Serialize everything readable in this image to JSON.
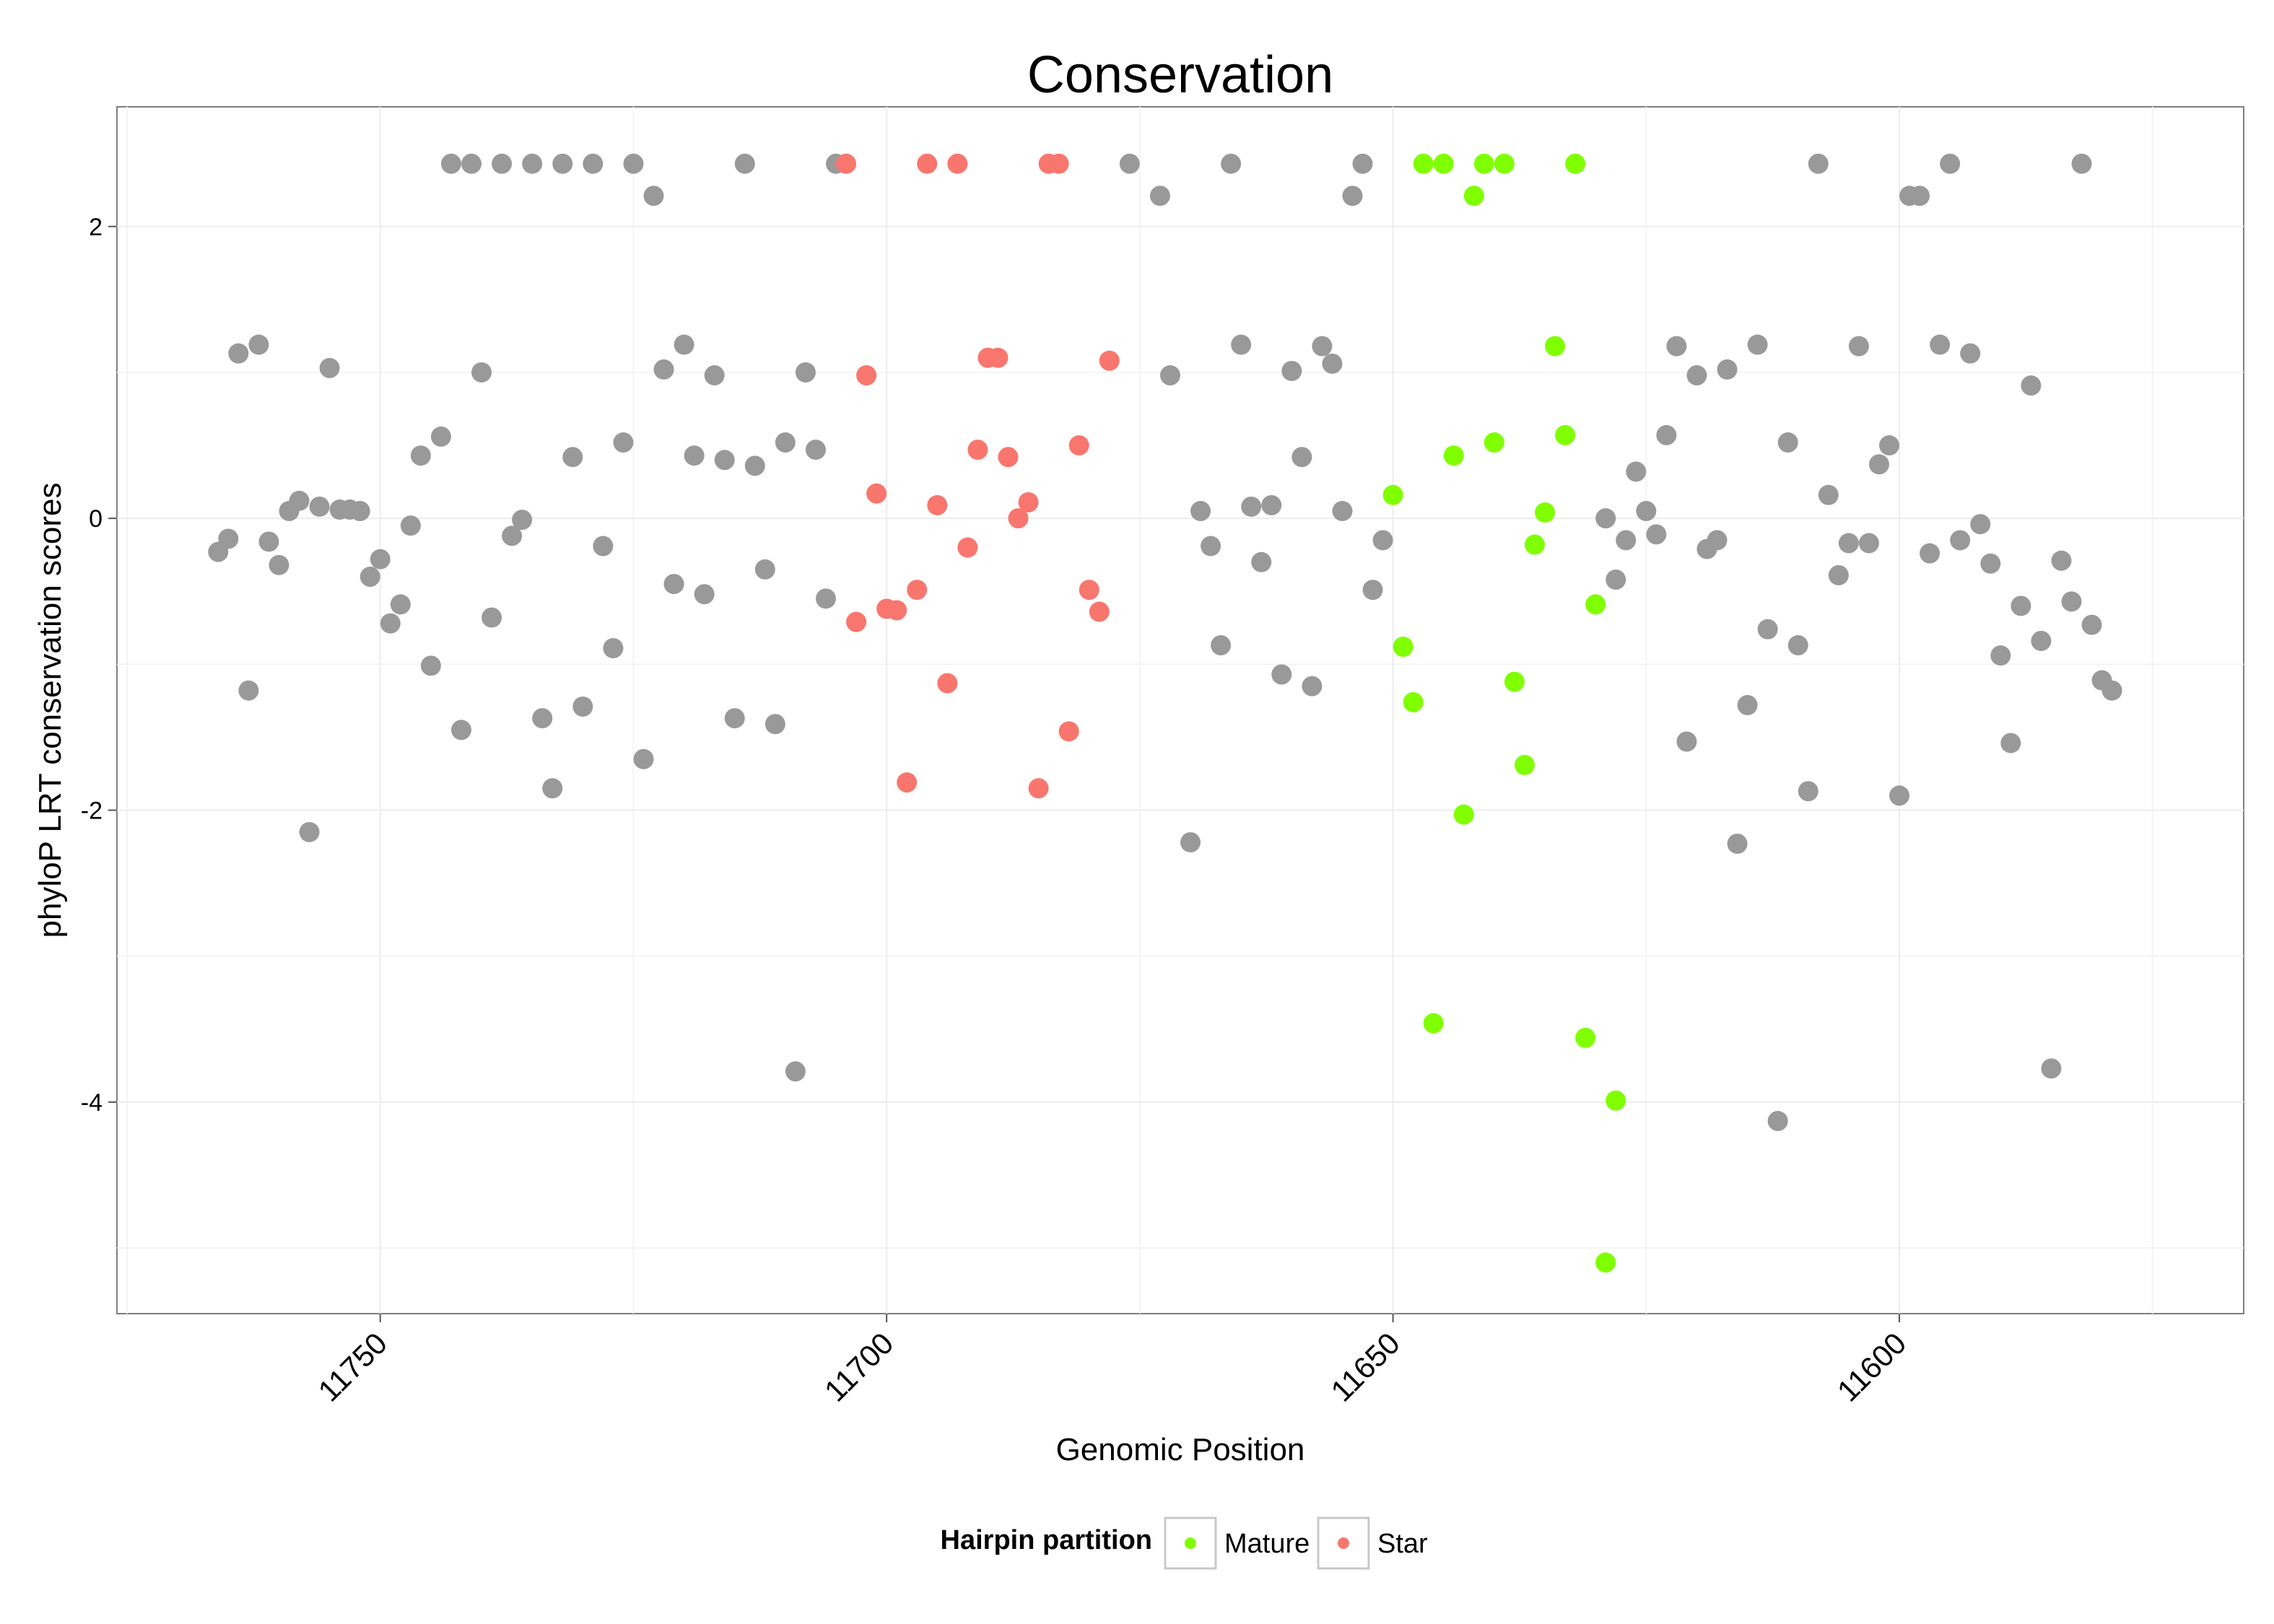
{
  "chart_data": {
    "type": "scatter",
    "title": "Conservation",
    "xlabel": "Genomic Position",
    "ylabel": "phyloP LRT conservation scores",
    "x_reversed": true,
    "xlim": [
      11776,
      11566
    ],
    "ylim": [
      -5.45,
      2.82
    ],
    "x_ticks": [
      11750,
      11700,
      11650,
      11600
    ],
    "x_tick_labels": [
      "11750",
      "11700",
      "11650",
      "11600"
    ],
    "y_ticks": [
      -4,
      -2,
      0,
      2
    ],
    "y_tick_labels": [
      "-4",
      "-2",
      "0",
      "2"
    ],
    "grid": true,
    "legend": {
      "title": "Hairpin partition",
      "position": "bottom",
      "entries": [
        {
          "label": "Mature",
          "color": "#7fff00"
        },
        {
          "label": "Star",
          "color": "#f8766d"
        }
      ]
    },
    "colors": {
      "other": "#999999",
      "mature": "#7fff00",
      "star": "#f8766d"
    },
    "series": [
      {
        "group": "other",
        "points": [
          [
            11766,
            -0.23
          ],
          [
            11765,
            -0.14
          ],
          [
            11764,
            1.13
          ],
          [
            11763,
            -1.18
          ],
          [
            11762,
            1.19
          ],
          [
            11761,
            -0.16
          ],
          [
            11760,
            -0.32
          ],
          [
            11759,
            0.05
          ],
          [
            11758,
            0.12
          ],
          [
            11757,
            -2.15
          ],
          [
            11756,
            0.08
          ],
          [
            11755,
            1.03
          ],
          [
            11754,
            0.06
          ],
          [
            11753,
            0.06
          ],
          [
            11752,
            0.05
          ],
          [
            11751,
            -0.4
          ],
          [
            11750,
            -0.28
          ],
          [
            11749,
            -0.72
          ],
          [
            11748,
            -0.59
          ],
          [
            11747,
            -0.05
          ],
          [
            11746,
            0.43
          ],
          [
            11745,
            -1.01
          ],
          [
            11744,
            0.56
          ],
          [
            11743,
            2.43
          ],
          [
            11742,
            -1.45
          ],
          [
            11741,
            2.43
          ],
          [
            11740,
            1.0
          ],
          [
            11739,
            -0.68
          ],
          [
            11738,
            2.43
          ],
          [
            11737,
            -0.12
          ],
          [
            11736,
            -0.01
          ],
          [
            11735,
            2.43
          ],
          [
            11734,
            -1.37
          ],
          [
            11733,
            -1.85
          ],
          [
            11732,
            2.43
          ],
          [
            11731,
            0.42
          ],
          [
            11730,
            -1.29
          ],
          [
            11729,
            2.43
          ],
          [
            11728,
            -0.19
          ],
          [
            11727,
            -0.89
          ],
          [
            11726,
            0.52
          ],
          [
            11725,
            2.43
          ],
          [
            11724,
            -1.65
          ],
          [
            11723,
            2.21
          ],
          [
            11722,
            1.02
          ],
          [
            11721,
            -0.45
          ],
          [
            11720,
            1.19
          ],
          [
            11719,
            0.43
          ],
          [
            11718,
            -0.52
          ],
          [
            11717,
            0.98
          ],
          [
            11716,
            0.4
          ],
          [
            11715,
            -1.37
          ],
          [
            11714,
            2.43
          ],
          [
            11713,
            0.36
          ],
          [
            11712,
            -0.35
          ],
          [
            11711,
            -1.41
          ],
          [
            11710,
            0.52
          ],
          [
            11709,
            -3.79
          ],
          [
            11708,
            1.0
          ],
          [
            11707,
            0.47
          ],
          [
            11706,
            -0.55
          ],
          [
            11705,
            2.43
          ],
          [
            11676,
            2.43
          ],
          [
            11673,
            2.21
          ],
          [
            11672,
            0.98
          ],
          [
            11670,
            -2.22
          ],
          [
            11669,
            0.05
          ],
          [
            11668,
            -0.19
          ],
          [
            11667,
            -0.87
          ],
          [
            11666,
            2.43
          ],
          [
            11665,
            1.19
          ],
          [
            11664,
            0.08
          ],
          [
            11663,
            -0.3
          ],
          [
            11662,
            0.09
          ],
          [
            11661,
            -1.07
          ],
          [
            11660,
            1.01
          ],
          [
            11659,
            0.42
          ],
          [
            11658,
            -1.15
          ],
          [
            11657,
            1.18
          ],
          [
            11656,
            1.06
          ],
          [
            11655,
            0.05
          ],
          [
            11654,
            2.21
          ],
          [
            11653,
            2.43
          ],
          [
            11652,
            -0.49
          ],
          [
            11651,
            -0.15
          ],
          [
            11629,
            0.0
          ],
          [
            11628,
            -0.42
          ],
          [
            11627,
            -0.15
          ],
          [
            11626,
            0.32
          ],
          [
            11625,
            0.05
          ],
          [
            11624,
            -0.11
          ],
          [
            11623,
            0.57
          ],
          [
            11622,
            1.18
          ],
          [
            11621,
            -1.53
          ],
          [
            11620,
            0.98
          ],
          [
            11619,
            -0.21
          ],
          [
            11618,
            -0.15
          ],
          [
            11617,
            1.02
          ],
          [
            11616,
            -2.23
          ],
          [
            11615,
            -1.28
          ],
          [
            11614,
            1.19
          ],
          [
            11613,
            -0.76
          ],
          [
            11612,
            -4.13
          ],
          [
            11611,
            0.52
          ],
          [
            11610,
            -0.87
          ],
          [
            11609,
            -1.87
          ],
          [
            11608,
            2.43
          ],
          [
            11607,
            0.16
          ],
          [
            11606,
            -0.39
          ],
          [
            11605,
            -0.17
          ],
          [
            11604,
            1.18
          ],
          [
            11603,
            -0.17
          ],
          [
            11602,
            0.37
          ],
          [
            11601,
            0.5
          ],
          [
            11600,
            -1.9
          ],
          [
            11599,
            2.21
          ],
          [
            11598,
            2.21
          ],
          [
            11597,
            -0.24
          ],
          [
            11596,
            1.19
          ],
          [
            11595,
            2.43
          ],
          [
            11594,
            -0.15
          ],
          [
            11593,
            1.13
          ],
          [
            11592,
            -0.04
          ],
          [
            11591,
            -0.31
          ],
          [
            11590,
            -0.94
          ],
          [
            11589,
            -1.54
          ],
          [
            11588,
            -0.6
          ],
          [
            11587,
            0.91
          ],
          [
            11586,
            -0.84
          ],
          [
            11585,
            -3.77
          ],
          [
            11584,
            -0.29
          ],
          [
            11583,
            -0.57
          ],
          [
            11582,
            2.43
          ],
          [
            11581,
            -0.73
          ],
          [
            11580,
            -1.11
          ],
          [
            11579,
            -1.18
          ]
        ]
      },
      {
        "group": "star",
        "points": [
          [
            11704,
            2.43
          ],
          [
            11703,
            -0.71
          ],
          [
            11702,
            0.98
          ],
          [
            11701,
            0.17
          ],
          [
            11700,
            -0.62
          ],
          [
            11699,
            -0.63
          ],
          [
            11698,
            -1.81
          ],
          [
            11697,
            -0.49
          ],
          [
            11696,
            2.43
          ],
          [
            11695,
            0.09
          ],
          [
            11694,
            -1.13
          ],
          [
            11693,
            2.43
          ],
          [
            11692,
            -0.2
          ],
          [
            11691,
            0.47
          ],
          [
            11690,
            1.1
          ],
          [
            11689,
            1.1
          ],
          [
            11688,
            0.42
          ],
          [
            11687,
            0.0
          ],
          [
            11686,
            0.11
          ],
          [
            11685,
            -1.85
          ],
          [
            11684,
            2.43
          ],
          [
            11683,
            2.43
          ],
          [
            11682,
            -1.46
          ],
          [
            11681,
            0.5
          ],
          [
            11680,
            -0.49
          ],
          [
            11679,
            -0.64
          ],
          [
            11678,
            1.08
          ]
        ]
      },
      {
        "group": "mature",
        "points": [
          [
            11650,
            0.16
          ],
          [
            11649,
            -0.88
          ],
          [
            11648,
            -1.26
          ],
          [
            11647,
            2.43
          ],
          [
            11646,
            -3.46
          ],
          [
            11645,
            2.43
          ],
          [
            11644,
            0.43
          ],
          [
            11643,
            -2.03
          ],
          [
            11642,
            2.21
          ],
          [
            11641,
            2.43
          ],
          [
            11640,
            0.52
          ],
          [
            11639,
            2.43
          ],
          [
            11638,
            -1.12
          ],
          [
            11637,
            -1.69
          ],
          [
            11636,
            -0.18
          ],
          [
            11635,
            0.04
          ],
          [
            11634,
            1.18
          ],
          [
            11633,
            0.57
          ],
          [
            11632,
            2.43
          ],
          [
            11631,
            -3.56
          ],
          [
            11630,
            -0.59
          ],
          [
            11629,
            -5.1
          ],
          [
            11628,
            -3.99
          ]
        ]
      }
    ]
  }
}
